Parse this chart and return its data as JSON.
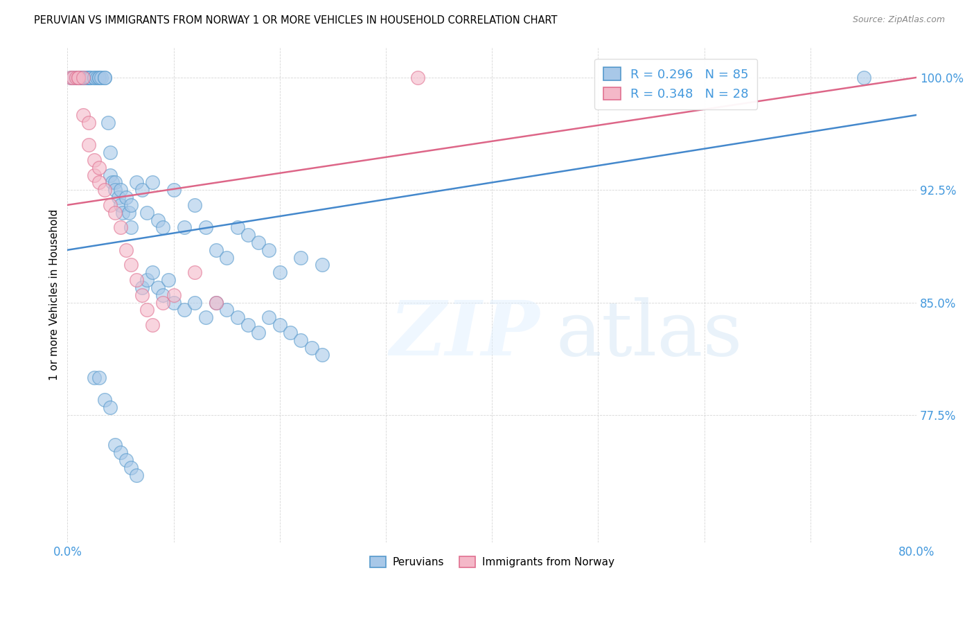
{
  "title": "PERUVIAN VS IMMIGRANTS FROM NORWAY 1 OR MORE VEHICLES IN HOUSEHOLD CORRELATION CHART",
  "source": "Source: ZipAtlas.com",
  "ylabel": "1 or more Vehicles in Household",
  "xlim": [
    0.0,
    80.0
  ],
  "ylim": [
    69.0,
    102.0
  ],
  "yticks": [
    77.5,
    85.0,
    92.5,
    100.0
  ],
  "xticks": [
    0.0,
    10.0,
    20.0,
    30.0,
    40.0,
    50.0,
    60.0,
    70.0,
    80.0
  ],
  "blue_color": "#a8c8e8",
  "pink_color": "#f4b8c8",
  "blue_edge_color": "#5599cc",
  "pink_edge_color": "#e07090",
  "blue_line_color": "#4488cc",
  "pink_line_color": "#dd6688",
  "R_blue": 0.296,
  "N_blue": 85,
  "R_pink": 0.348,
  "N_pink": 28,
  "legend_label_blue": "Peruvians",
  "legend_label_pink": "Immigrants from Norway",
  "axis_color": "#4499dd",
  "blue_x": [
    0.3,
    0.5,
    0.8,
    1.0,
    1.0,
    1.2,
    1.5,
    1.5,
    1.8,
    2.0,
    2.0,
    2.0,
    2.2,
    2.5,
    2.5,
    2.8,
    3.0,
    3.0,
    3.2,
    3.5,
    3.5,
    3.8,
    4.0,
    4.0,
    4.2,
    4.5,
    4.5,
    4.8,
    5.0,
    5.0,
    5.2,
    5.5,
    5.8,
    6.0,
    6.0,
    6.5,
    7.0,
    7.5,
    8.0,
    8.5,
    9.0,
    10.0,
    11.0,
    12.0,
    13.0,
    14.0,
    15.0,
    16.0,
    17.0,
    18.0,
    19.0,
    20.0,
    22.0,
    24.0,
    7.0,
    7.5,
    8.0,
    8.5,
    9.0,
    9.5,
    10.0,
    11.0,
    12.0,
    13.0,
    14.0,
    15.0,
    16.0,
    17.0,
    18.0,
    19.0,
    20.0,
    21.0,
    22.0,
    23.0,
    24.0,
    2.5,
    3.0,
    3.5,
    4.0,
    4.5,
    5.0,
    5.5,
    6.0,
    6.5,
    75.0
  ],
  "blue_y": [
    100.0,
    100.0,
    100.0,
    100.0,
    100.0,
    100.0,
    100.0,
    100.0,
    100.0,
    100.0,
    100.0,
    100.0,
    100.0,
    100.0,
    100.0,
    100.0,
    100.0,
    100.0,
    100.0,
    100.0,
    100.0,
    97.0,
    95.0,
    93.5,
    93.0,
    93.0,
    92.5,
    92.0,
    92.5,
    91.5,
    91.0,
    92.0,
    91.0,
    91.5,
    90.0,
    93.0,
    92.5,
    91.0,
    93.0,
    90.5,
    90.0,
    92.5,
    90.0,
    91.5,
    90.0,
    88.5,
    88.0,
    90.0,
    89.5,
    89.0,
    88.5,
    87.0,
    88.0,
    87.5,
    86.0,
    86.5,
    87.0,
    86.0,
    85.5,
    86.5,
    85.0,
    84.5,
    85.0,
    84.0,
    85.0,
    84.5,
    84.0,
    83.5,
    83.0,
    84.0,
    83.5,
    83.0,
    82.5,
    82.0,
    81.5,
    80.0,
    80.0,
    78.5,
    78.0,
    75.5,
    75.0,
    74.5,
    74.0,
    73.5,
    100.0
  ],
  "pink_x": [
    0.3,
    0.5,
    0.8,
    1.0,
    1.0,
    1.5,
    1.5,
    2.0,
    2.0,
    2.5,
    2.5,
    3.0,
    3.0,
    3.5,
    4.0,
    4.5,
    5.0,
    5.5,
    6.0,
    6.5,
    7.0,
    7.5,
    8.0,
    9.0,
    10.0,
    12.0,
    14.0,
    33.0
  ],
  "pink_y": [
    100.0,
    100.0,
    100.0,
    100.0,
    100.0,
    100.0,
    97.5,
    97.0,
    95.5,
    94.5,
    93.5,
    94.0,
    93.0,
    92.5,
    91.5,
    91.0,
    90.0,
    88.5,
    87.5,
    86.5,
    85.5,
    84.5,
    83.5,
    85.0,
    85.5,
    87.0,
    85.0,
    100.0
  ],
  "blue_trendline_x": [
    0.0,
    80.0
  ],
  "blue_trendline_y": [
    88.5,
    97.5
  ],
  "pink_trendline_x": [
    0.0,
    80.0
  ],
  "pink_trendline_y": [
    91.5,
    100.0
  ]
}
